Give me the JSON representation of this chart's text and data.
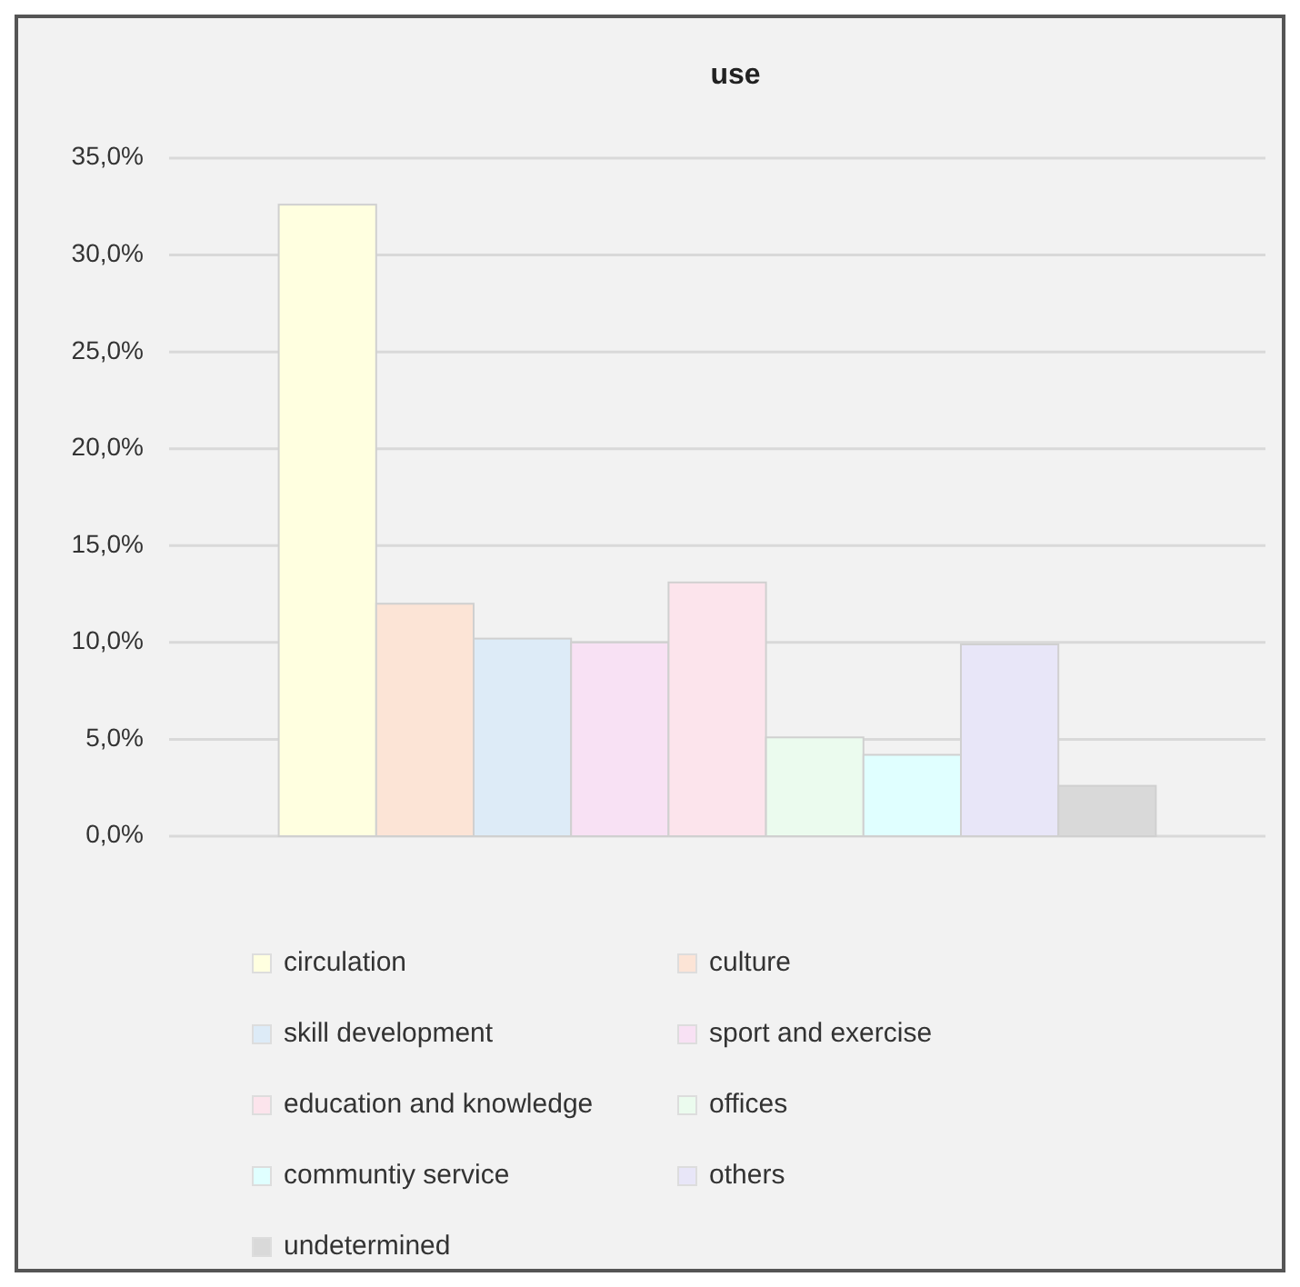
{
  "chart_data": {
    "type": "bar",
    "title": "use",
    "categories": [
      null
    ],
    "series": [
      {
        "name": "circulation",
        "color": "#ffffe0",
        "values": [
          32.6
        ]
      },
      {
        "name": "culture",
        "color": "#fce4d6",
        "values": [
          12.0
        ]
      },
      {
        "name": "skill development",
        "color": "#ddebf7",
        "values": [
          10.2
        ]
      },
      {
        "name": "sport and exercise",
        "color": "#f8e1f4",
        "values": [
          10.0
        ]
      },
      {
        "name": "education and knowledge",
        "color": "#fce4ec",
        "values": [
          13.1
        ]
      },
      {
        "name": "offices",
        "color": "#ebfbee",
        "values": [
          5.1
        ]
      },
      {
        "name": "communtiy service",
        "color": "#e0ffff",
        "values": [
          4.2
        ]
      },
      {
        "name": "others",
        "color": "#e8e6f8",
        "values": [
          9.9
        ]
      },
      {
        "name": "undetermined",
        "color": "#d9d9d9",
        "values": [
          2.6
        ]
      }
    ],
    "ylim": [
      0,
      35
    ],
    "yticks": [
      {
        "value": 0,
        "label": "0,0%"
      },
      {
        "value": 5,
        "label": "5,0%"
      },
      {
        "value": 10,
        "label": "10,0%"
      },
      {
        "value": 15,
        "label": "15,0%"
      },
      {
        "value": 20,
        "label": "20,0%"
      },
      {
        "value": 25,
        "label": "25,0%"
      },
      {
        "value": 30,
        "label": "30,0%"
      },
      {
        "value": 35,
        "label": "35,0%"
      }
    ],
    "grid": "y",
    "legend": "bottom"
  }
}
